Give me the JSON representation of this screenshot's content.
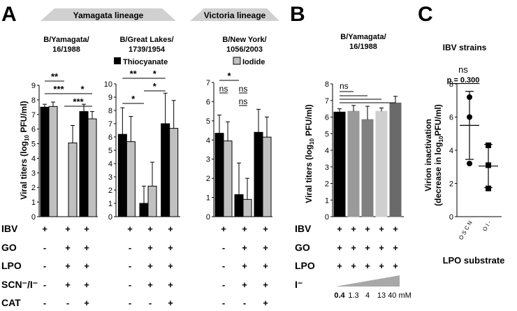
{
  "colors": {
    "black": "#000000",
    "gray": "#c0c0c0",
    "lineage_bar": "#d0d0d0"
  },
  "panels": {
    "A": {
      "letter": "A",
      "lineages": {
        "yamagata": "Yamagata lineage",
        "victoria": "Victoria lineage"
      },
      "legend": {
        "thiocyanate": "Thiocyanate",
        "iodide": "Iodide"
      },
      "ylabel_main": "Viral titers (log",
      "ylabel_sub": "10",
      "ylabel_end": " PFU/ml)",
      "row_labels": [
        "IBV",
        "GO",
        "LPO",
        "SCN⁻/I⁻",
        "CAT"
      ],
      "conditions": [
        [
          "+",
          "+",
          "+"
        ],
        [
          "-",
          "+",
          "+"
        ],
        [
          "-",
          "+",
          "+"
        ],
        [
          "-",
          "+",
          "+"
        ],
        [
          "-",
          "-",
          "+"
        ]
      ],
      "ns_label": "ns"
    },
    "B": {
      "letter": "B",
      "title": [
        "B/Yamagata/",
        "16/1988"
      ],
      "row_labels": [
        "IBV",
        "GO",
        "LPO",
        "I⁻"
      ],
      "plus": "+",
      "concentrations": [
        "0.4",
        "1.3",
        "4",
        "13",
        "40 mM"
      ],
      "ns_label": "ns"
    },
    "C": {
      "letter": "C",
      "title": "IBV strains",
      "ns_label": "ns",
      "p_label": "p = 0.300",
      "ylabel1": "Virion inactivation",
      "ylabel2": "(decrease in log",
      "ylabel2_sub": "10",
      "ylabel2_end": "PFU/ml)",
      "xlabel": "LPO substrate"
    }
  },
  "chart_data": [
    {
      "type": "bar",
      "title": "B/Yamagata/16/1988",
      "categories": [
        "IBV",
        "IBV+GO+LPO+substrate",
        "IBV+GO+LPO+substrate+CAT"
      ],
      "series": [
        {
          "name": "Thiocyanate",
          "values": [
            7.5,
            0,
            7.2
          ],
          "errors": [
            0.2,
            0,
            0.5
          ]
        },
        {
          "name": "Iodide",
          "values": [
            7.55,
            5.05,
            6.7
          ],
          "errors": [
            0.3,
            1.2,
            0.5
          ]
        }
      ],
      "ylim": [
        0,
        9
      ],
      "yticks": [
        "0",
        "1",
        "2",
        "3",
        "4",
        "5",
        "6",
        "7",
        "8",
        "9"
      ],
      "significance": [
        {
          "from": 0,
          "to": 2,
          "label": "**",
          "row": 1
        },
        {
          "from": 0,
          "to": 3,
          "label": "***",
          "row": 0
        },
        {
          "from": 3,
          "to": 5,
          "label": "*",
          "row": 0
        },
        {
          "from": 2,
          "to": 5,
          "label": "***",
          "row": -1
        }
      ]
    },
    {
      "type": "bar",
      "title": "B/Great Lakes/1739/1954",
      "categories": [
        "IBV",
        "IBV+GO+LPO+substrate",
        "IBV+GO+LPO+substrate+CAT"
      ],
      "series": [
        {
          "name": "Thiocyanate",
          "values": [
            6.2,
            1.0,
            7.0
          ],
          "errors": [
            2.0,
            1.3,
            2.3
          ]
        },
        {
          "name": "Iodide",
          "values": [
            5.65,
            2.3,
            6.65
          ],
          "errors": [
            1.9,
            1.8,
            2.1
          ]
        }
      ],
      "ylim": [
        0,
        10
      ],
      "yticks": [
        "0",
        "1",
        "2",
        "3",
        "4",
        "5",
        "6",
        "7",
        "8",
        "9",
        "10"
      ],
      "significance": [
        {
          "from": 0,
          "to": 2,
          "label": "**",
          "row": 1
        },
        {
          "from": 2,
          "to": 4,
          "label": "*",
          "row": 1
        },
        {
          "from": 2,
          "to": 4,
          "label": "*",
          "row": 0
        },
        {
          "from": 0,
          "to": 2,
          "label": "*",
          "row": -1
        }
      ]
    },
    {
      "type": "bar",
      "title": "B/New York/1056/2003",
      "categories": [
        "IBV",
        "IBV+GO+LPO+substrate",
        "IBV+GO+LPO+substrate+CAT"
      ],
      "series": [
        {
          "name": "Thiocyanate",
          "values": [
            4.35,
            1.15,
            4.4
          ],
          "errors": [
            0.95,
            1.65,
            1.2
          ]
        },
        {
          "name": "Iodide",
          "values": [
            3.95,
            0.9,
            4.15
          ],
          "errors": [
            1.0,
            1.1,
            1.05
          ]
        }
      ],
      "ylim": [
        0,
        7
      ],
      "yticks": [
        "0",
        "1",
        "2",
        "3",
        "4",
        "5",
        "6",
        "7"
      ],
      "significance": [
        {
          "from": 0,
          "to": 2,
          "label": "*",
          "row": 1
        },
        {
          "from": 0,
          "to": 1,
          "label": "ns",
          "row": 0
        },
        {
          "from": 2,
          "to": 3,
          "label": "ns",
          "row": 0
        },
        {
          "from": 2,
          "to": 3,
          "label": "ns",
          "row": -1
        }
      ]
    },
    {
      "type": "bar",
      "title": "B/Yamagata/16/1988 (iodide concentration)",
      "categories": [
        "0.4",
        "1.3",
        "4",
        "13",
        "40 mM"
      ],
      "values": [
        6.3,
        6.35,
        5.85,
        6.35,
        6.85
      ],
      "errors": [
        0.2,
        0.35,
        0.8,
        0.2,
        0.4
      ],
      "colors": [
        "#000000",
        "#9a9a9a",
        "#808080",
        "#cfcfcf",
        "#6a6a6a"
      ],
      "ylim": [
        0,
        8
      ],
      "yticks": [
        "0",
        "1",
        "2",
        "3",
        "4",
        "5",
        "6",
        "7",
        "8"
      ],
      "ylabel": "Viral titers (log10 PFU/ml)"
    },
    {
      "type": "scatter",
      "title": "IBV strains",
      "categories": [
        "OSCN",
        "OI-"
      ],
      "series": [
        {
          "name": "OSCN",
          "points": [
            7.2,
            6.0,
            3.2
          ],
          "mean": 5.5,
          "sd": 2.05
        },
        {
          "name": "OI-",
          "points": [
            4.3,
            3.1,
            1.7
          ],
          "mean": 3.05,
          "sd": 1.3
        }
      ],
      "ylim": [
        0,
        8
      ],
      "yticks": [
        "0",
        "2",
        "4",
        "6",
        "8"
      ],
      "xlabel": "LPO substrate",
      "ylabel": "Virion inactivation (decrease in log10PFU/ml)"
    }
  ]
}
